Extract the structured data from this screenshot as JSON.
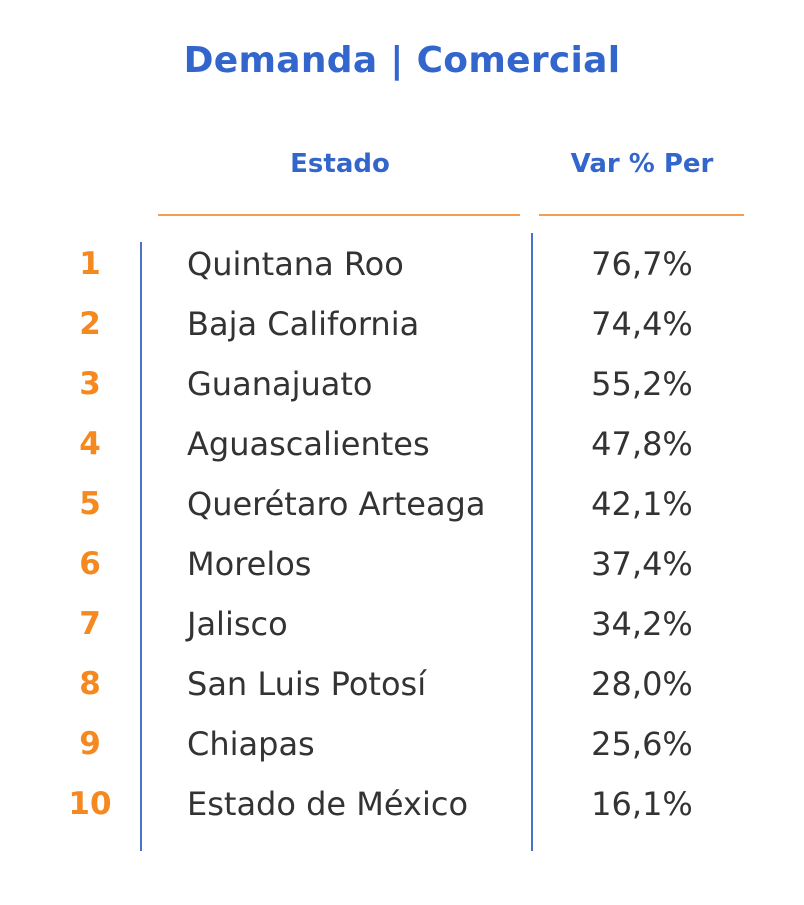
{
  "chart_data": {
    "type": "table",
    "title": "Demanda | Comercial",
    "columns": [
      "Estado",
      "Var % Per"
    ],
    "rows": [
      {
        "rank": "1",
        "estado": "Quintana Roo",
        "value_text": "76,7%",
        "value": 76.7
      },
      {
        "rank": "2",
        "estado": "Baja California",
        "value_text": "74,4%",
        "value": 74.4
      },
      {
        "rank": "3",
        "estado": "Guanajuato",
        "value_text": "55,2%",
        "value": 55.2
      },
      {
        "rank": "4",
        "estado": "Aguascalientes",
        "value_text": "47,8%",
        "value": 47.8
      },
      {
        "rank": "5",
        "estado": "Querétaro Arteaga",
        "value_text": "42,1%",
        "value": 42.1
      },
      {
        "rank": "6",
        "estado": "Morelos",
        "value_text": "37,4%",
        "value": 37.4
      },
      {
        "rank": "7",
        "estado": "Jalisco",
        "value_text": "34,2%",
        "value": 34.2
      },
      {
        "rank": "8",
        "estado": "San Luis Potosí",
        "value_text": "28,0%",
        "value": 28.0
      },
      {
        "rank": "9",
        "estado": "Chiapas",
        "value_text": "25,6%",
        "value": 25.6
      },
      {
        "rank": "10",
        "estado": "Estado de México",
        "value_text": "16,1%",
        "value": 16.1
      }
    ]
  },
  "colors": {
    "title": "#3366cc",
    "header": "#3366cc",
    "rank": "#f5891f",
    "header_rule": "#f0a050",
    "vertical_rule": "#4a72c8",
    "text": "#333333"
  }
}
